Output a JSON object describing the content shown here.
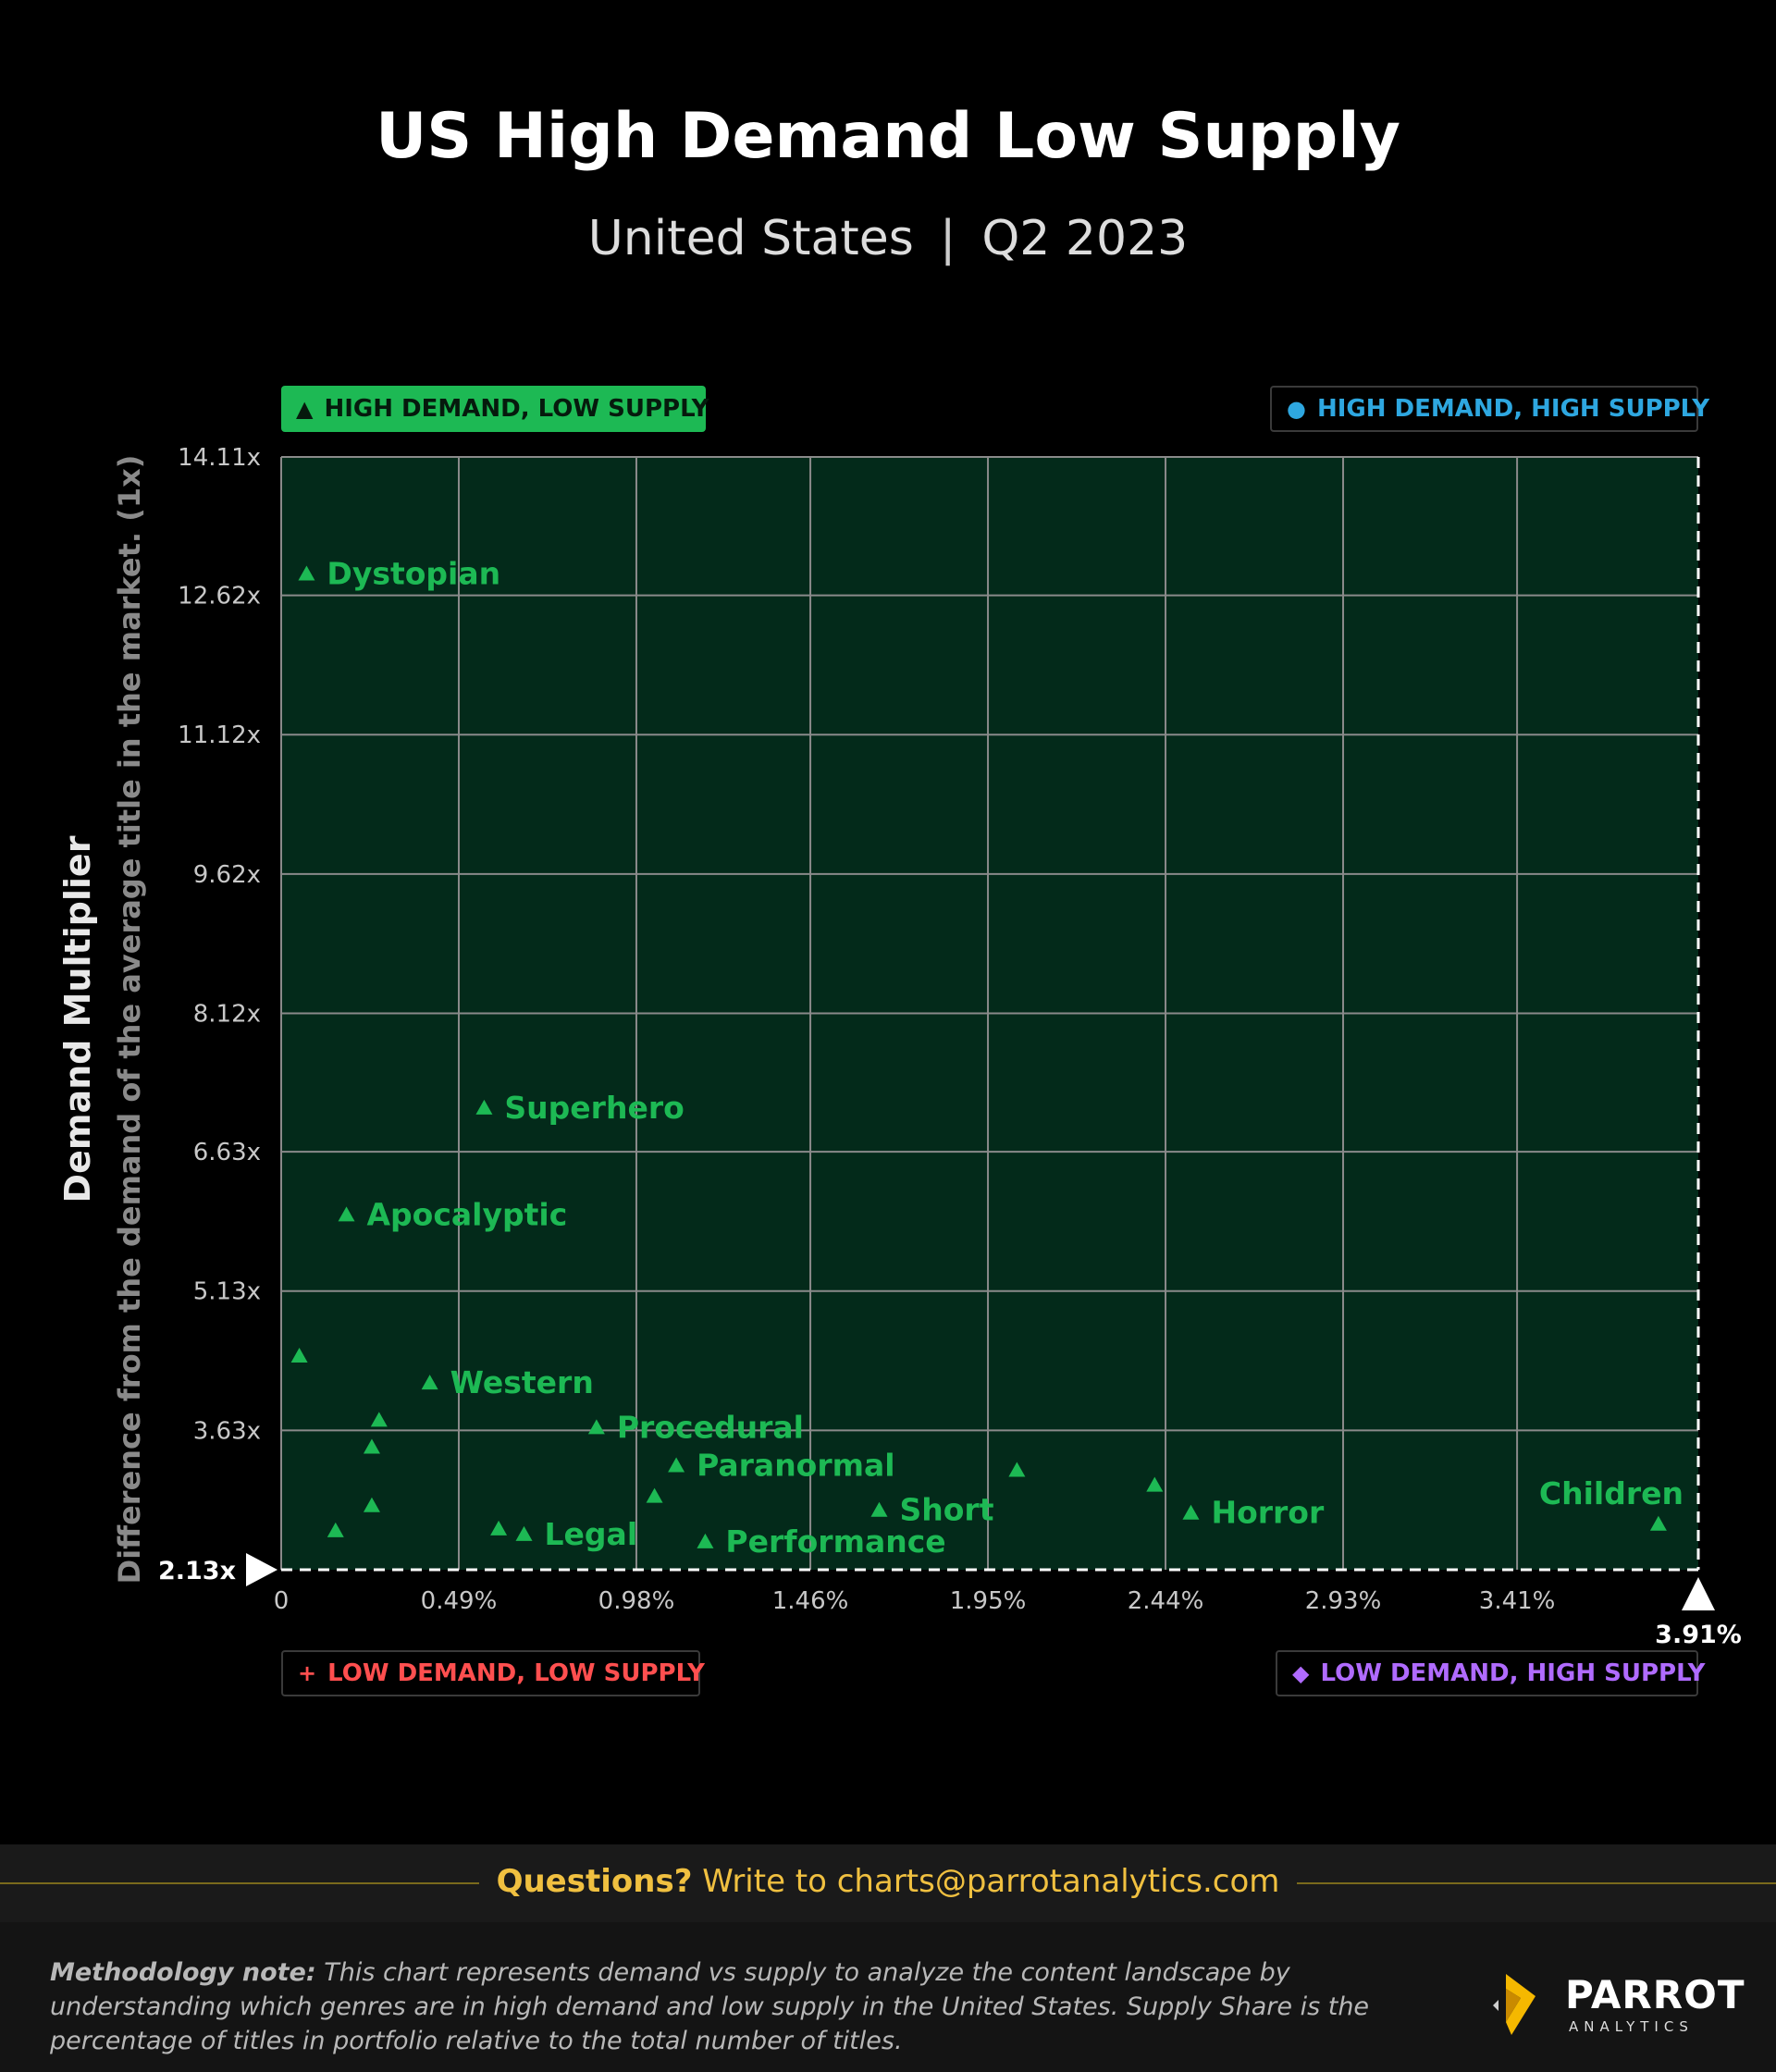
{
  "header": {
    "title": "US High Demand Low Supply",
    "region": "United States",
    "separator": "|",
    "period": "Q2 2023"
  },
  "quadrants": {
    "high_low": {
      "label": "HIGH DEMAND, LOW SUPPLY",
      "icon": "triangle-icon",
      "color": "#1db954"
    },
    "high_high": {
      "label": "HIGH DEMAND, HIGH SUPPLY",
      "icon": "circle-icon",
      "color": "#2ea7e0"
    },
    "low_low": {
      "label": "LOW DEMAND, LOW SUPPLY",
      "icon": "plus-icon",
      "color": "#ff4f4f"
    },
    "low_high": {
      "label": "LOW DEMAND, HIGH SUPPLY",
      "icon": "diamond-icon",
      "color": "#b06bff"
    }
  },
  "chart_data": {
    "type": "scatter",
    "xlabel": "",
    "ylabel": "Demand Multiplier",
    "ylabel_sub": "Difference from the demand of the average title in the market. (1x)",
    "x_ticks": [
      "0",
      "0.49%",
      "0.98%",
      "1.46%",
      "1.95%",
      "2.44%",
      "2.93%",
      "3.41%"
    ],
    "y_ticks": [
      "14.11x",
      "12.62x",
      "11.12x",
      "9.62x",
      "8.12x",
      "6.63x",
      "5.13x",
      "3.63x"
    ],
    "xlim": [
      0,
      3.91
    ],
    "ylim": [
      2.13,
      14.11
    ],
    "x_unit": "%",
    "y_unit": "x",
    "x_reference": {
      "value": 3.91,
      "label": "3.91%"
    },
    "y_reference": {
      "value": 2.13,
      "label": "2.13x"
    },
    "grid": true,
    "plot_background": "#032a1a",
    "marker_color": "#1db954",
    "points": [
      {
        "label": "Dystopian",
        "x": 0.07,
        "y": 12.85
      },
      {
        "label": "Superhero",
        "x": 0.56,
        "y": 7.1
      },
      {
        "label": "Apocalyptic",
        "x": 0.18,
        "y": 5.95
      },
      {
        "label": "",
        "x": 0.05,
        "y": 4.43
      },
      {
        "label": "Western",
        "x": 0.41,
        "y": 4.14
      },
      {
        "label": "",
        "x": 0.27,
        "y": 3.74
      },
      {
        "label": "",
        "x": 0.25,
        "y": 3.45
      },
      {
        "label": "Procedural",
        "x": 0.87,
        "y": 3.66
      },
      {
        "label": "Paranormal",
        "x": 1.09,
        "y": 3.25
      },
      {
        "label": "",
        "x": 2.03,
        "y": 3.2
      },
      {
        "label": "",
        "x": 2.41,
        "y": 3.04
      },
      {
        "label": "",
        "x": 1.03,
        "y": 2.92
      },
      {
        "label": "",
        "x": 0.25,
        "y": 2.82
      },
      {
        "label": "Short",
        "x": 1.65,
        "y": 2.77
      },
      {
        "label": "Horror",
        "x": 2.51,
        "y": 2.74
      },
      {
        "label": "Children",
        "x": 3.8,
        "y": 2.62
      },
      {
        "label": "",
        "x": 0.15,
        "y": 2.55
      },
      {
        "label": "",
        "x": 0.6,
        "y": 2.57
      },
      {
        "label": "Legal",
        "x": 0.67,
        "y": 2.51
      },
      {
        "label": "Performance",
        "x": 1.17,
        "y": 2.43
      }
    ]
  },
  "footer": {
    "questions_bold": "Questions?",
    "questions_rest": " Write to charts@parrotanalytics.com",
    "method_bold": "Methodology note:",
    "method_rest": " This chart represents demand vs supply to analyze the content landscape by understanding which genres are in high demand and low supply in the United States. Supply Share is the percentage of titles in portfolio relative to the total number of titles.",
    "logo_name": "PARROT",
    "logo_sub": "ANALYTICS"
  }
}
